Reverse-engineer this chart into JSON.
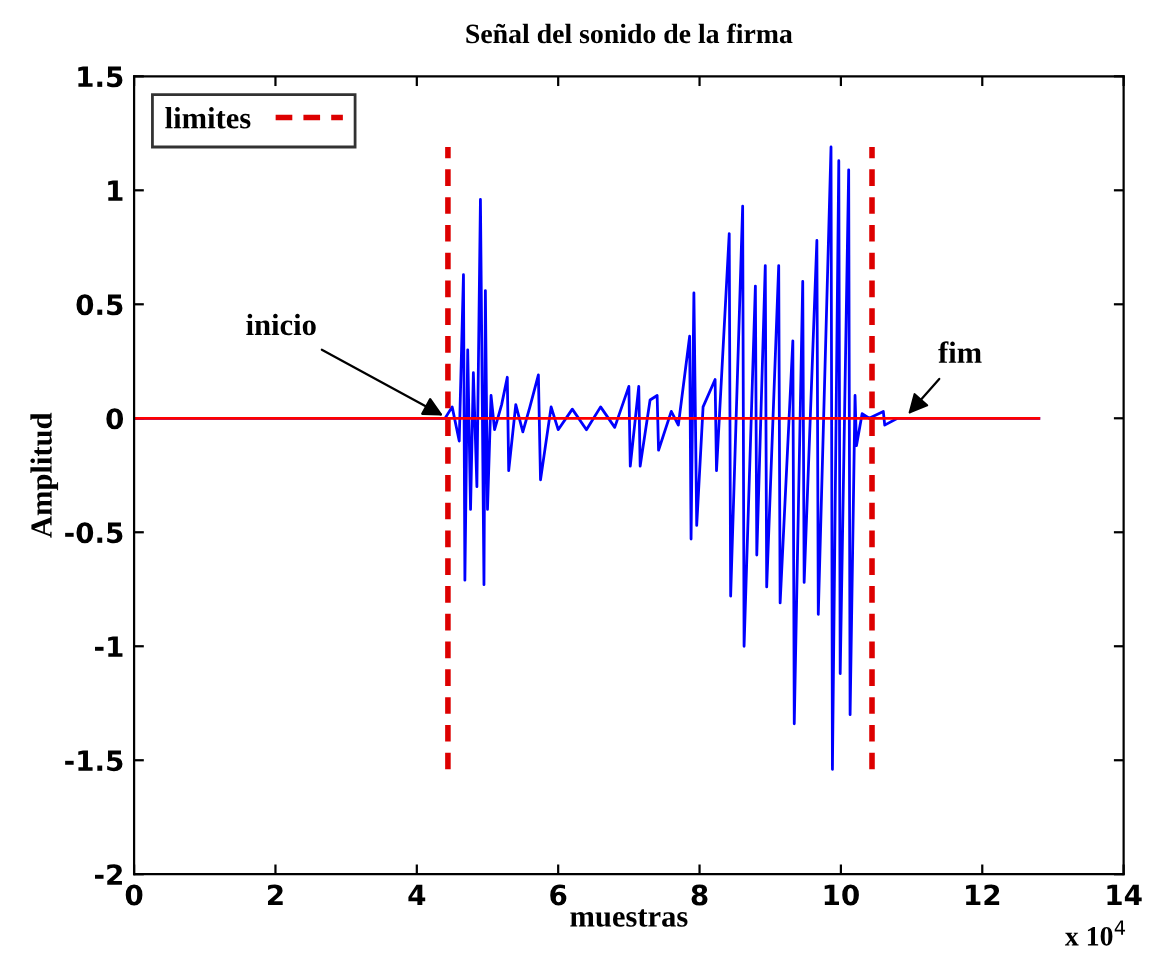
{
  "chart_data": {
    "type": "line",
    "title": "Señal del sonido de la firma",
    "xlabel": "muestras",
    "ylabel": "Amplitud",
    "xlim": [
      0,
      14
    ],
    "xticks": [
      0,
      2,
      4,
      6,
      8,
      10,
      12,
      14
    ],
    "ylim": [
      -2,
      1.5
    ],
    "yticks": [
      -2,
      -1.5,
      -1,
      -0.5,
      0,
      0.5,
      1,
      1.5
    ],
    "grid": false,
    "legend": "top left",
    "annotations": [
      {
        "text": "inicio",
        "x": 4.44,
        "y": 0
      },
      {
        "text": "fim",
        "x": 10.9,
        "y": 0
      },
      "x 10$^{4}$"
    ],
    "series": [
      {
        "color": "#0000ff",
        "line_style": "solid",
        "x": [
          0,
          4.4,
          4.5,
          4.6,
          4.66,
          4.68,
          4.72,
          4.76,
          4.8,
          4.85,
          4.9,
          4.95,
          4.97,
          5.0,
          5.05,
          5.1,
          5.2,
          5.28,
          5.3,
          5.4,
          5.5,
          5.6,
          5.72,
          5.75,
          5.9,
          6.0,
          6.2,
          6.4,
          6.6,
          6.8,
          7.0,
          7.02,
          7.14,
          7.16,
          7.3,
          7.4,
          7.42,
          7.6,
          7.7,
          7.86,
          7.88,
          7.92,
          7.96,
          8.05,
          8.22,
          8.24,
          8.42,
          8.44,
          8.61,
          8.63,
          8.79,
          8.81,
          8.93,
          8.95,
          9.12,
          9.14,
          9.32,
          9.34,
          9.46,
          9.48,
          9.66,
          9.68,
          9.86,
          9.88,
          9.97,
          9.99,
          10.11,
          10.13,
          10.2,
          10.22,
          10.3,
          10.4,
          10.6,
          10.62,
          10.8,
          12.8
        ],
        "values": [
          0,
          0,
          0.05,
          -0.1,
          0.63,
          -0.71,
          0.3,
          -0.4,
          0.2,
          -0.3,
          0.96,
          -0.73,
          0.56,
          -0.4,
          0.1,
          -0.05,
          0.06,
          0.18,
          -0.23,
          0.06,
          -0.06,
          0.05,
          0.19,
          -0.27,
          0.05,
          -0.05,
          0.04,
          -0.05,
          0.05,
          -0.04,
          0.14,
          -0.21,
          0.14,
          -0.21,
          0.08,
          0.1,
          -0.14,
          0.03,
          -0.03,
          0.36,
          -0.53,
          0.55,
          -0.47,
          0.05,
          0.17,
          -0.23,
          0.81,
          -0.78,
          0.93,
          -1.0,
          0.58,
          -0.6,
          0.67,
          -0.74,
          0.67,
          -0.81,
          0.34,
          -1.34,
          0.6,
          -0.72,
          0.78,
          -0.86,
          1.19,
          -1.54,
          1.13,
          -1.12,
          1.09,
          -1.3,
          0.1,
          -0.12,
          0.02,
          0,
          0.03,
          -0.03,
          0,
          0
        ]
      },
      {
        "color": "#ff0000",
        "line_style": "solid",
        "x": [
          0,
          12.8
        ],
        "values": [
          0,
          0
        ]
      },
      {
        "name": "limites",
        "color": "#dd0000",
        "line_style": "dashed",
        "x": [
          4.44,
          4.44,
          null,
          10.44,
          10.44
        ],
        "values": [
          -1.54,
          1.19,
          null,
          -1.54,
          1.19
        ]
      }
    ]
  }
}
